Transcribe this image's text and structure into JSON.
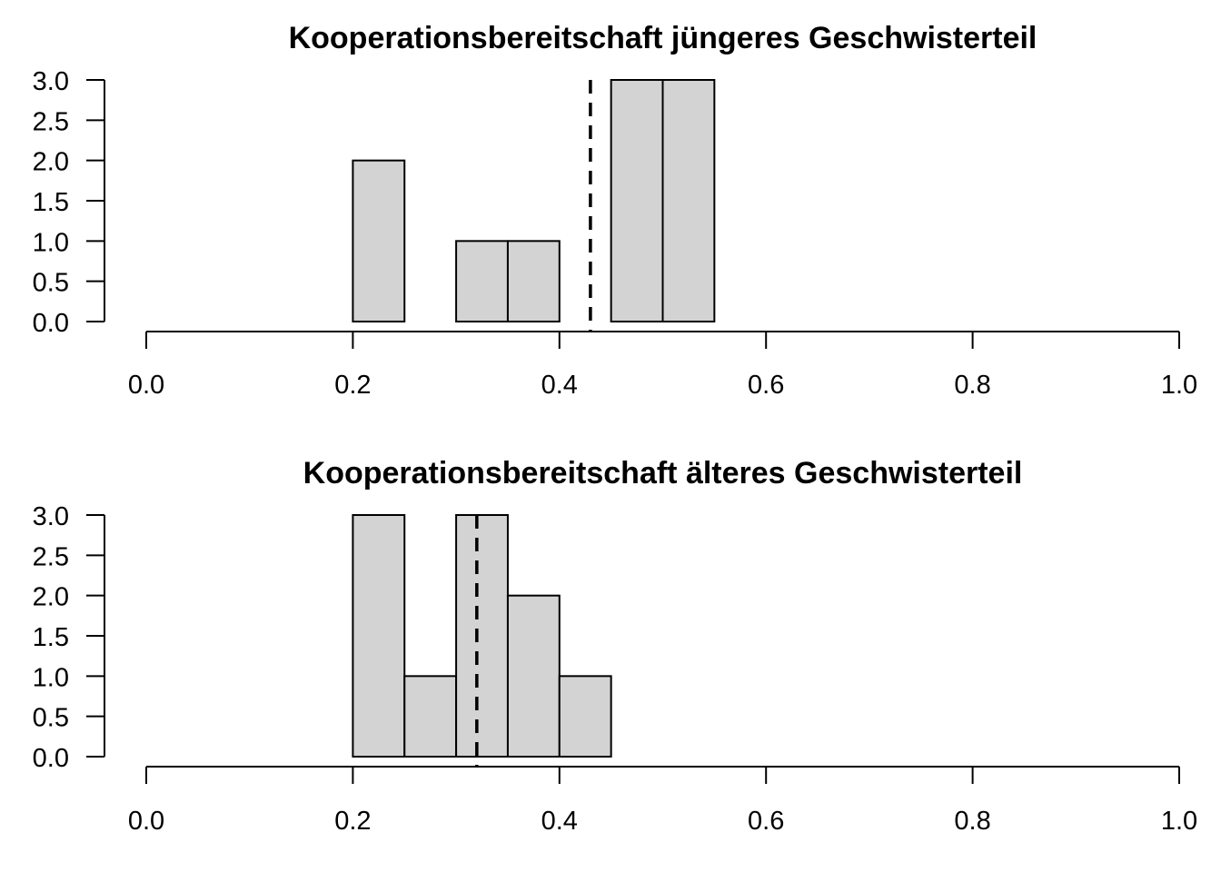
{
  "chart_data": [
    {
      "type": "bar",
      "title": "Kooperationsbereitschaft jüngeres Geschwisterteil",
      "xlim": [
        0,
        1
      ],
      "ylim": [
        0,
        3
      ],
      "x_ticks": [
        "0.0",
        "0.2",
        "0.4",
        "0.6",
        "0.8",
        "1.0"
      ],
      "y_ticks": [
        "0.0",
        "0.5",
        "1.0",
        "1.5",
        "2.0",
        "2.5",
        "3.0"
      ],
      "bins": [
        {
          "from": 0.2,
          "to": 0.25,
          "count": 2
        },
        {
          "from": 0.3,
          "to": 0.35,
          "count": 1
        },
        {
          "from": 0.35,
          "to": 0.4,
          "count": 1
        },
        {
          "from": 0.45,
          "to": 0.5,
          "count": 3
        },
        {
          "from": 0.5,
          "to": 0.55,
          "count": 3
        }
      ],
      "reference_line_x": 0.43,
      "bar_color": "#d3d3d3",
      "grid": false
    },
    {
      "type": "bar",
      "title": "Kooperationsbereitschaft älteres Geschwisterteil",
      "xlim": [
        0,
        1
      ],
      "ylim": [
        0,
        3
      ],
      "x_ticks": [
        "0.0",
        "0.2",
        "0.4",
        "0.6",
        "0.8",
        "1.0"
      ],
      "y_ticks": [
        "0.0",
        "0.5",
        "1.0",
        "1.5",
        "2.0",
        "2.5",
        "3.0"
      ],
      "bins": [
        {
          "from": 0.2,
          "to": 0.25,
          "count": 3
        },
        {
          "from": 0.25,
          "to": 0.3,
          "count": 1
        },
        {
          "from": 0.3,
          "to": 0.35,
          "count": 3
        },
        {
          "from": 0.35,
          "to": 0.4,
          "count": 2
        },
        {
          "from": 0.4,
          "to": 0.45,
          "count": 1
        }
      ],
      "reference_line_x": 0.32,
      "bar_color": "#d3d3d3",
      "grid": false
    }
  ]
}
